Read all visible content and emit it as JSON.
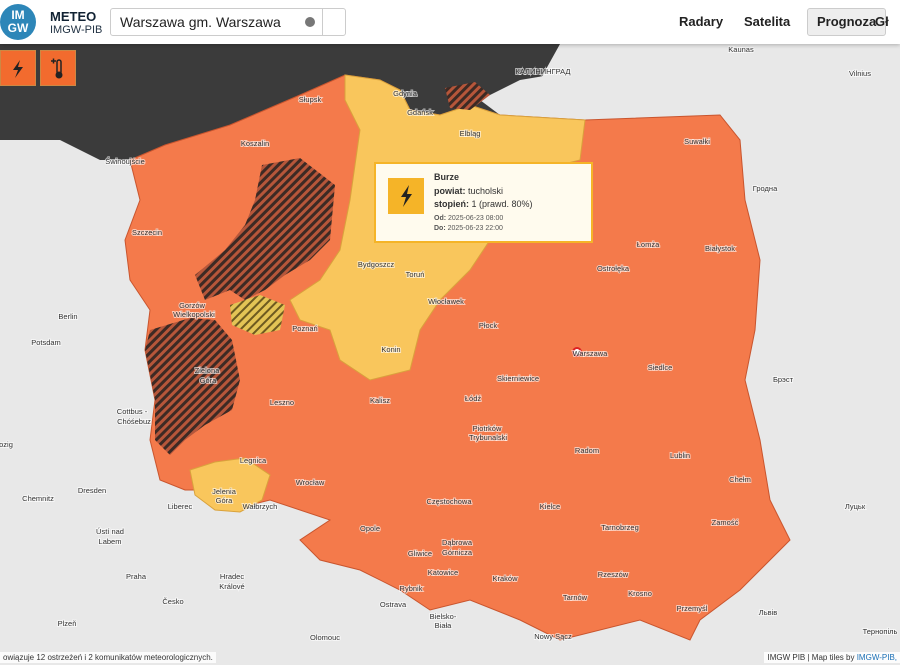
{
  "header": {
    "logo_badge": [
      "IM",
      "GW"
    ],
    "logo_title": "METEO",
    "logo_subtitle": "IMGW-PIB",
    "search": "Warszawa gm. Warszawa",
    "nav": [
      "Radary",
      "Satelita",
      "Prognoza",
      "Gł"
    ]
  },
  "popup": {
    "title": "Burze",
    "county_label": "powiat:",
    "county": "tucholski",
    "level_label": "stopień:",
    "level": "1 (prawd. 80%)",
    "from_label": "Od:",
    "from": "2025-06-23 08:00",
    "to_label": "Do:",
    "to": "2025-06-23 22:00"
  },
  "map_labels": [
    "Słupsk",
    "Koszalin",
    "Gdynia",
    "Gdańsk",
    "Elbląg",
    "Świnoujście",
    "Szczecin",
    "Bydgoszcz",
    "Toruń",
    "Gorzów",
    "Wielkopolski",
    "Poznań",
    "Włocławek",
    "Płock",
    "Konin",
    "Warszawa",
    "Siedlce",
    "Skierniewice",
    "Łódź",
    "Kalisz",
    "Leszno",
    "Zielona",
    "Góra",
    "Legnica",
    "Wrocław",
    "Piotrków",
    "Trybunalski",
    "Radom",
    "Lublin",
    "Chełm",
    "Częstochowa",
    "Kielce",
    "Opole",
    "Zamość",
    "Tarnobrzeg",
    "Jelenia",
    "Góra",
    "Wałbrzych",
    "Gliwice",
    "Dąbrowa",
    "Górnicza",
    "Katowice",
    "Kraków",
    "Rzeszów",
    "Rybnik",
    "Tarnów",
    "Krosno",
    "Przemyśl",
    "Bielsko-",
    "Biała",
    "Nowy Sącz",
    "Ostrava",
    "Łomża",
    "Białystok",
    "Ostrołęka",
    "Suwałki",
    "КАЛИНИНГРАД",
    "Kaunas",
    "Vilnius",
    "Гродна",
    "Брэст",
    "Berlin",
    "Potsdam",
    "Cottbus -",
    "Chóśebuz",
    "Dresden",
    "Chemnitz",
    "Liberec",
    "Ústí nad",
    "Labem",
    "Praha",
    "Hradec",
    "Králové",
    "Česko",
    "Plzeň",
    "Olomouc",
    "Луцьк",
    "Львів",
    "Тернопіль",
    "ozig"
  ],
  "footer": {
    "status": "owiązuje 12 ostrzeżeń i 2 komunikatów meteorologicznych.",
    "credit": "IMGW PIB | Map tiles by",
    "credit_link": "IMGW-PIB,"
  }
}
